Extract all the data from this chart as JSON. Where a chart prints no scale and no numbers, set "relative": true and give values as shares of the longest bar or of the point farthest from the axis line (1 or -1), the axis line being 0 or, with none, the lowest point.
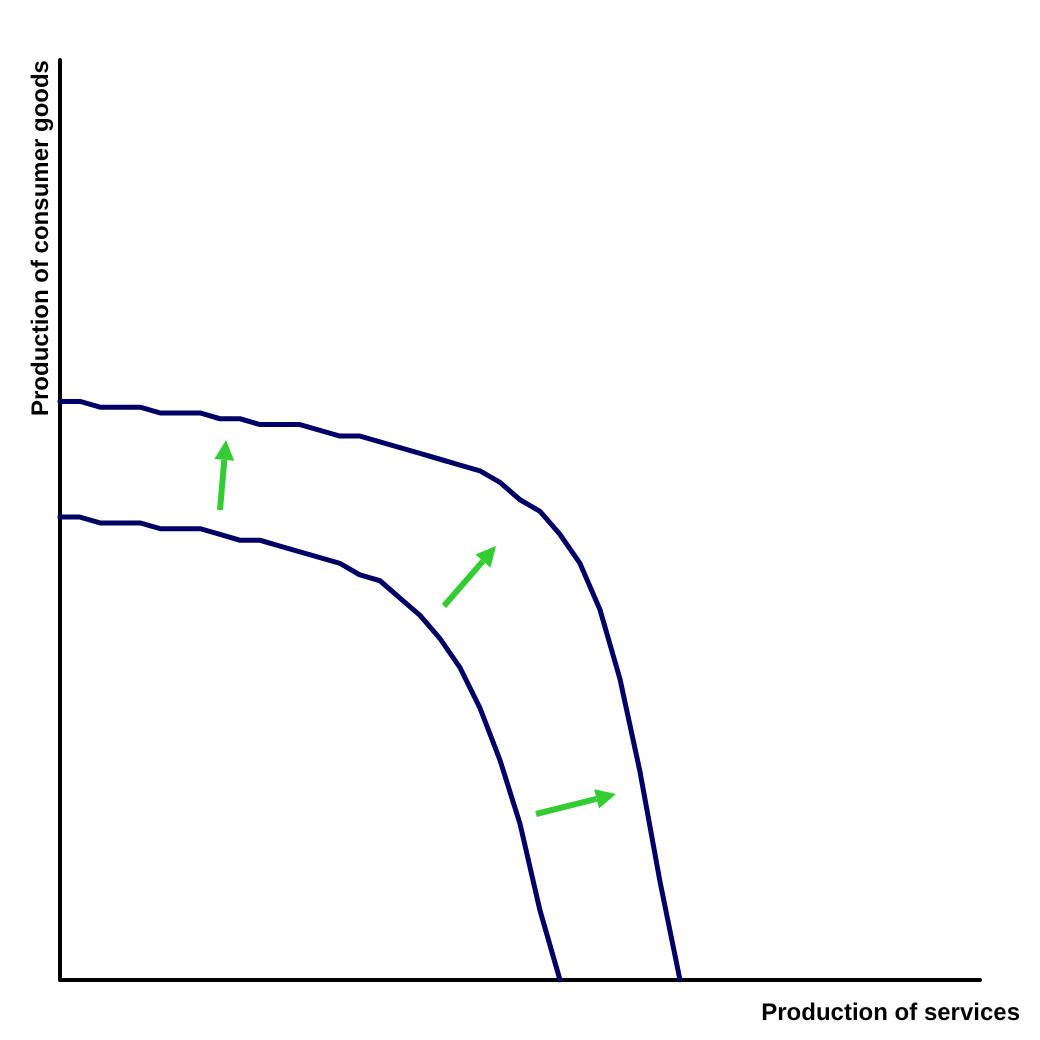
{
  "chart_data": {
    "type": "line",
    "xlabel": "Production of services",
    "ylabel": "Production of consumer goods",
    "relative": true,
    "categories": [
      null,
      null,
      null,
      null,
      null,
      null,
      null,
      null,
      null,
      null,
      null,
      null,
      null,
      null,
      null,
      null,
      null,
      null,
      null,
      null,
      null,
      null,
      null,
      null,
      null,
      null,
      null,
      null,
      null,
      null,
      null,
      null,
      null,
      null,
      null,
      null,
      null,
      null,
      null,
      null,
      null,
      null,
      null,
      null,
      null,
      null,
      null
    ],
    "series": [
      {
        "color": "#000066",
        "values": [
          1,
          1,
          0.99,
          0.99,
          0.99,
          0.98,
          0.98,
          0.98,
          0.97,
          0.97,
          0.96,
          0.96,
          0.96,
          0.95,
          0.94,
          0.94,
          0.93,
          0.92,
          0.91,
          0.9,
          0.89,
          0.88,
          0.86,
          0.83,
          0.81,
          0.77,
          0.72,
          0.64,
          0.52,
          0.36,
          0.17,
          0,
          null,
          null,
          null,
          null,
          null,
          null,
          null,
          null,
          null,
          null,
          null,
          null,
          null,
          null,
          null
        ]
      },
      {
        "color": "#000066",
        "values": [
          0.8,
          0.8,
          0.79,
          0.79,
          0.79,
          0.78,
          0.78,
          0.78,
          0.77,
          0.76,
          0.76,
          0.75,
          0.74,
          0.73,
          0.72,
          0.7,
          0.69,
          0.66,
          0.63,
          0.59,
          0.54,
          0.47,
          0.38,
          0.27,
          0.12,
          0,
          null,
          null,
          null,
          null,
          null,
          null,
          null,
          null,
          null,
          null,
          null,
          null,
          null,
          null,
          null,
          null,
          null,
          null,
          null,
          null,
          null
        ]
      }
    ]
  }
}
